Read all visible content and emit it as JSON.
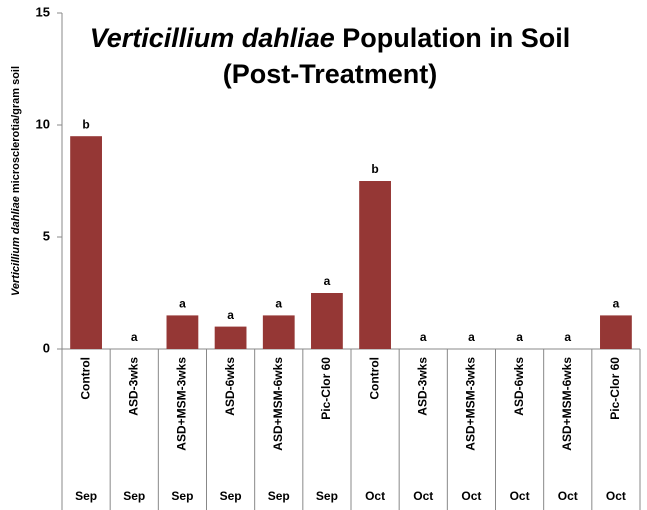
{
  "chart_data": {
    "type": "bar",
    "title_italic": "Verticillium dahliae",
    "title_rest": " Population in Soil",
    "title_line2": "(Post-Treatment)",
    "ylabel_italic": "Verticillium dahliae",
    "ylabel_rest": " microsclerotia/gram soil",
    "categories": [
      "Control",
      "ASD-3wks",
      "ASD+MSM-3wks",
      "ASD-6wks",
      "ASD+MSM-6wks",
      "Pic-Clor 60",
      "Control",
      "ASD-3wks",
      "ASD+MSM-3wks",
      "ASD-6wks",
      "ASD+MSM-6wks",
      "Pic-Clor 60"
    ],
    "groups": [
      "Sep",
      "Sep",
      "Sep",
      "Sep",
      "Sep",
      "Sep",
      "Oct",
      "Oct",
      "Oct",
      "Oct",
      "Oct",
      "Oct"
    ],
    "values": [
      9.5,
      0,
      1.5,
      1,
      1.5,
      2.5,
      7.5,
      0,
      0,
      0,
      0,
      1.5
    ],
    "significance_labels": [
      "b",
      "a",
      "a",
      "a",
      "a",
      "a",
      "b",
      "a",
      "a",
      "a",
      "a",
      "a"
    ],
    "color": "#953735",
    "ylim": [
      0,
      15
    ],
    "yticks": [
      0,
      5,
      10,
      15
    ]
  }
}
